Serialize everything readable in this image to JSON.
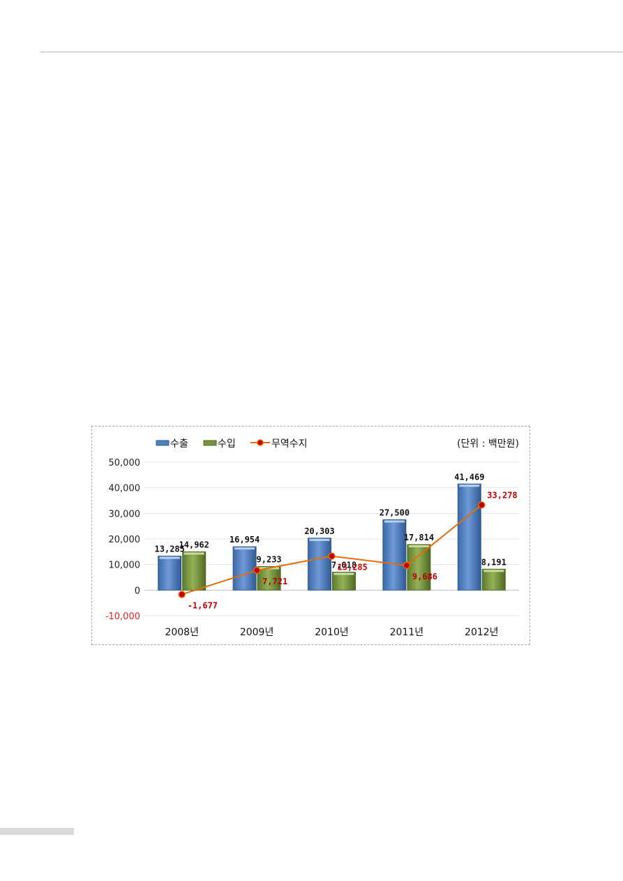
{
  "chart_data": {
    "type": "bar",
    "unit_note": "(단위 : 백만원)",
    "categories": [
      "2008년",
      "2009년",
      "2010년",
      "2011년",
      "2012년"
    ],
    "ylim": [
      -10000,
      50000
    ],
    "yticks": [
      "-10,000",
      "0",
      "10,000",
      "20,000",
      "30,000",
      "40,000",
      "50,000"
    ],
    "grid": true,
    "legend_position": "top-left",
    "series": [
      {
        "name": "수출",
        "kind": "bar",
        "color": "#4f81bd",
        "values": [
          13285,
          16954,
          20303,
          27500,
          41469
        ],
        "labels": [
          "13,285",
          "16,954",
          "20,303",
          "27,500",
          "41,469"
        ]
      },
      {
        "name": "수입",
        "kind": "bar",
        "color": "#77933c",
        "values": [
          14962,
          9233,
          7018,
          17814,
          8191
        ],
        "labels": [
          "14,962",
          "9,233",
          "7,018",
          "17,814",
          "8,191"
        ]
      },
      {
        "name": "무역수지",
        "kind": "line",
        "color": "#e46c0a",
        "marker_color": "#c00000",
        "values": [
          -1677,
          7721,
          13285,
          9686,
          33278
        ],
        "labels": [
          "-1,677",
          "7,721",
          "13,285",
          "9,686",
          "33,278"
        ]
      }
    ]
  }
}
